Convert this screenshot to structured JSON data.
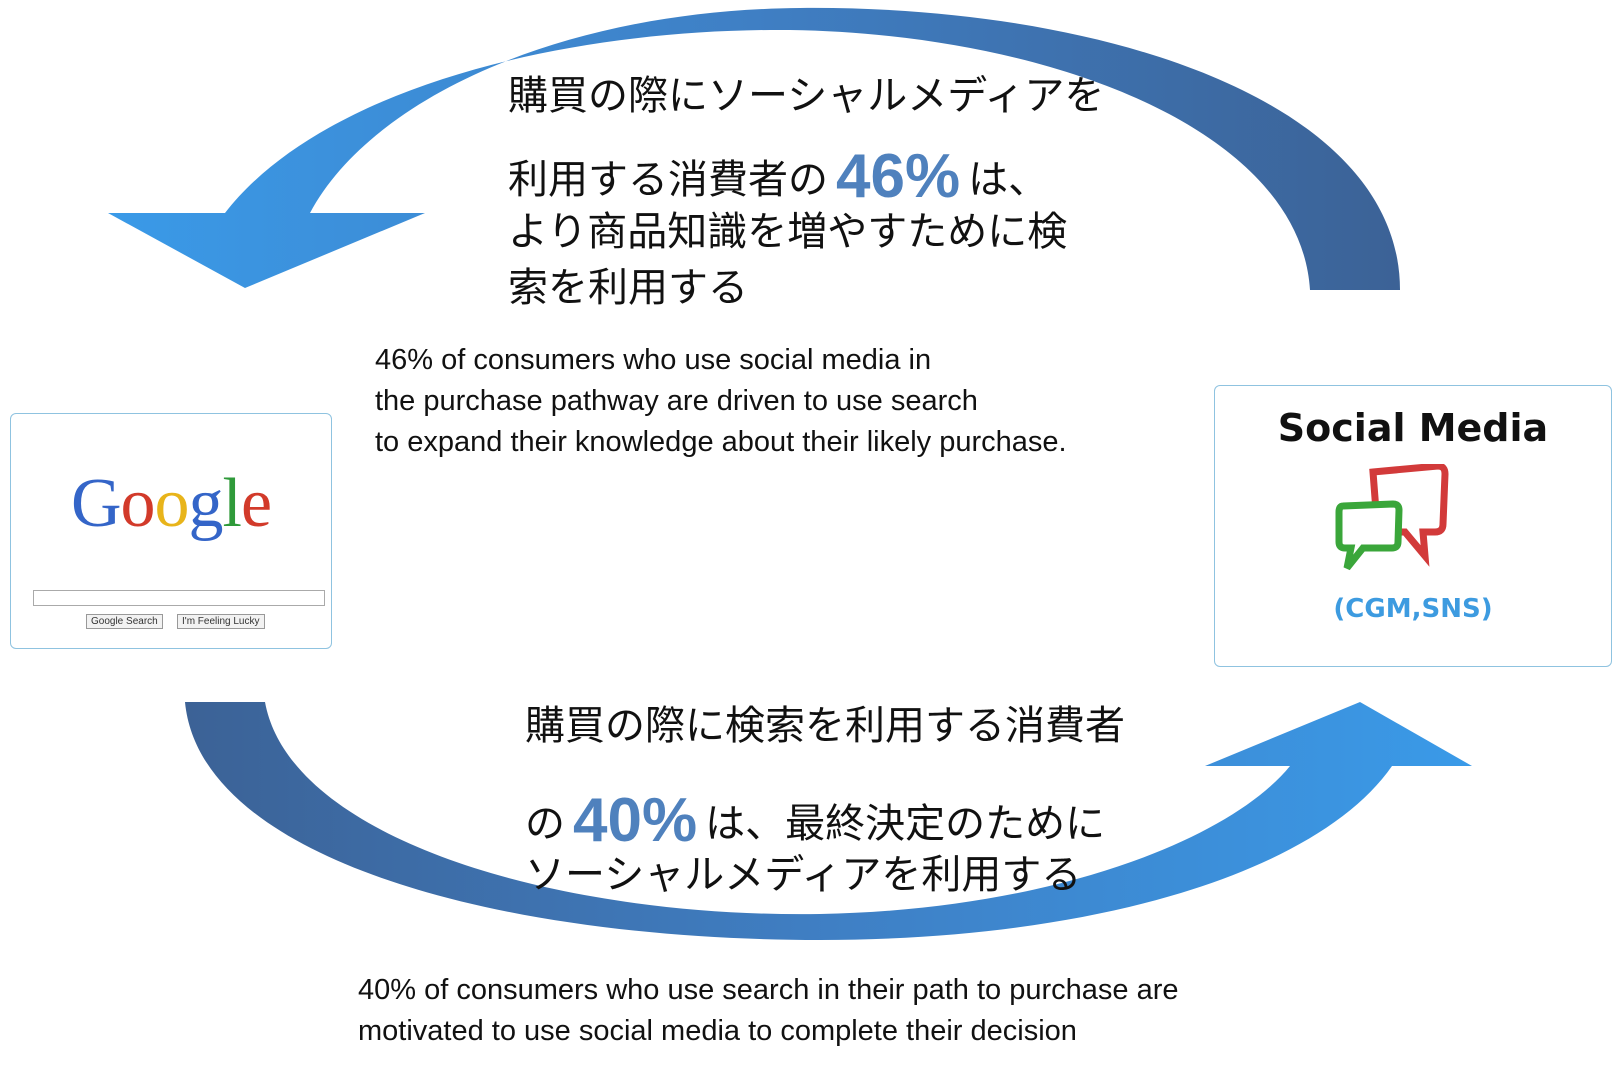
{
  "top": {
    "jp_lines": [
      "購買の際にソーシャルメディアを",
      "利用する消費者の",
      "46%",
      "は、",
      "より商品知識を増やすために検",
      "索を利用する"
    ],
    "en_lines": [
      "46% of consumers who use social media in",
      "the purchase pathway are driven to use search",
      "to expand their knowledge about their likely purchase."
    ]
  },
  "google": {
    "logo": "Google",
    "buttons": [
      "Google Search",
      "I'm Feeling Lucky"
    ]
  },
  "social": {
    "title": "Social Media",
    "subtitle": "(CGM,SNS)"
  },
  "bottom": {
    "jp_lines": [
      "購買の際に検索を利用する消費者",
      "の",
      "40%",
      "は、最終決定のために",
      "ソーシャルメディアを利用する"
    ],
    "en_lines": [
      "40% of consumers who use search in their path to purchase are",
      "motivated to use social media to complete their decision"
    ]
  }
}
